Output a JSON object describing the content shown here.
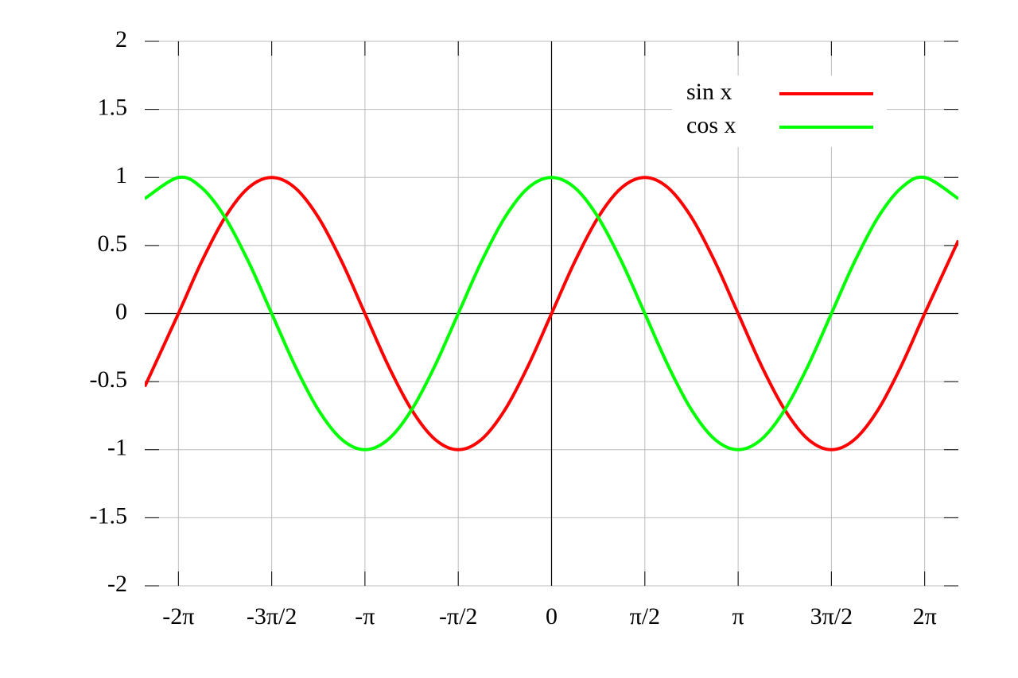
{
  "chart_data": {
    "type": "line",
    "x": [
      -6.85,
      -6.283,
      -5.89,
      -5.498,
      -5.105,
      -4.712,
      -4.32,
      -3.927,
      -3.534,
      -3.142,
      -2.749,
      -2.356,
      -1.963,
      -1.571,
      -1.178,
      -0.785,
      -0.393,
      0,
      0.393,
      0.785,
      1.178,
      1.571,
      1.963,
      2.356,
      2.749,
      3.142,
      3.534,
      3.927,
      4.32,
      4.712,
      5.105,
      5.498,
      5.89,
      6.283,
      6.85
    ],
    "series": [
      {
        "name": "sin x",
        "color": "#ff0000",
        "values": [
          -0.537,
          0,
          0.383,
          0.707,
          0.924,
          1,
          0.924,
          0.707,
          0.383,
          0,
          -0.383,
          -0.707,
          -0.924,
          -1,
          -0.924,
          -0.707,
          -0.383,
          0,
          0.383,
          0.707,
          0.924,
          1,
          0.924,
          0.707,
          0.383,
          0,
          -0.383,
          -0.707,
          -0.924,
          -1,
          -0.924,
          -0.707,
          -0.383,
          0,
          0.537
        ]
      },
      {
        "name": "cos x",
        "color": "#00ff00",
        "values": [
          0.844,
          1,
          0.924,
          0.707,
          0.383,
          0,
          -0.383,
          -0.707,
          -0.924,
          -1,
          -0.924,
          -0.707,
          -0.383,
          0,
          0.383,
          0.707,
          0.924,
          1,
          0.924,
          0.707,
          0.383,
          0,
          -0.383,
          -0.707,
          -0.924,
          -1,
          -0.924,
          -0.707,
          -0.383,
          0,
          0.383,
          0.707,
          0.924,
          1,
          0.844
        ]
      }
    ],
    "xlim": [
      -6.85,
      6.85
    ],
    "xticks": [
      {
        "value": -6.283,
        "label": "-2π"
      },
      {
        "value": -4.712,
        "label": "-3π/2"
      },
      {
        "value": -3.142,
        "label": "-π"
      },
      {
        "value": -1.571,
        "label": "-π/2"
      },
      0,
      {
        "value": 1.571,
        "label": "π/2"
      },
      {
        "value": 3.142,
        "label": "π"
      },
      {
        "value": 4.712,
        "label": "3π/2"
      },
      {
        "value": 6.283,
        "label": "2π"
      }
    ],
    "ylim": [
      -2,
      2
    ],
    "yticks": [
      -2,
      -1.5,
      -1,
      -0.5,
      0,
      0.5,
      1,
      1.5,
      2
    ],
    "grid": true,
    "legend": "top-right"
  }
}
